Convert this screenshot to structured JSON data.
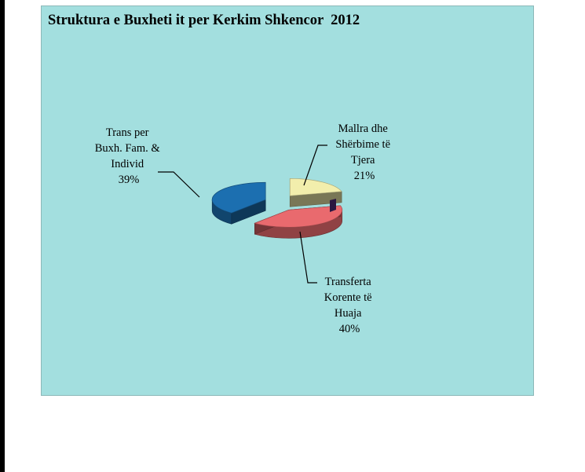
{
  "chart_data": {
    "type": "pie",
    "title": "Struktura e Buxheti it per Kerkim Shkencor  2012",
    "slices": [
      {
        "name_lines": [
          "Trans per",
          "Buxh. Fam. &",
          "Individ"
        ],
        "value": 39,
        "value_label": "39%",
        "color": "#1c6fb0"
      },
      {
        "name_lines": [
          "Mallra dhe",
          "Shërbime të",
          "Tjera"
        ],
        "value": 21,
        "value_label": "21%",
        "color": "#f2eeac"
      },
      {
        "name_lines": [
          "Transferta",
          "Korente të",
          "Huaja"
        ],
        "value": 40,
        "value_label": "40%",
        "color": "#e96a6e"
      }
    ],
    "background_color": "#a3dfdf"
  }
}
